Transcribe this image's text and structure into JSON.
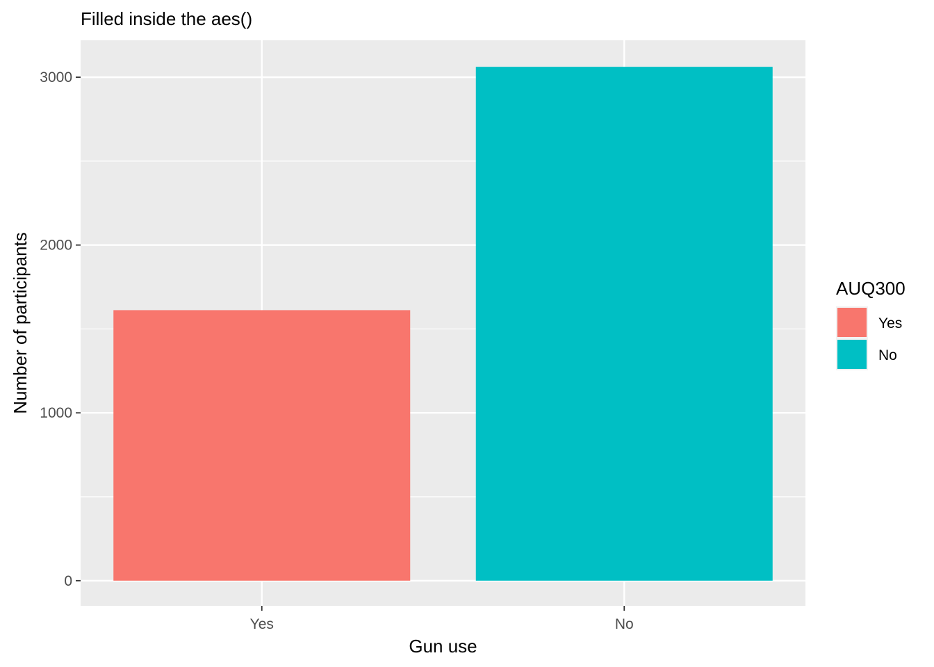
{
  "chart_data": {
    "type": "bar",
    "title": "Filled inside the aes()",
    "xlabel": "Gun use",
    "ylabel": "Number of participants",
    "categories": [
      "Yes",
      "No"
    ],
    "values": [
      1612,
      3062
    ],
    "colors": [
      "#F8766D",
      "#00BFC4"
    ],
    "ylim": [
      -150,
      3220
    ],
    "yticks": [
      0,
      1000,
      2000,
      3000
    ],
    "ytick_labels": [
      "0",
      "1000",
      "2000",
      "3000"
    ],
    "grid": true,
    "panel_background": "#EBEBEB",
    "legend": {
      "title": "AUQ300",
      "position": "right",
      "entries": [
        "Yes",
        "No"
      ]
    }
  }
}
